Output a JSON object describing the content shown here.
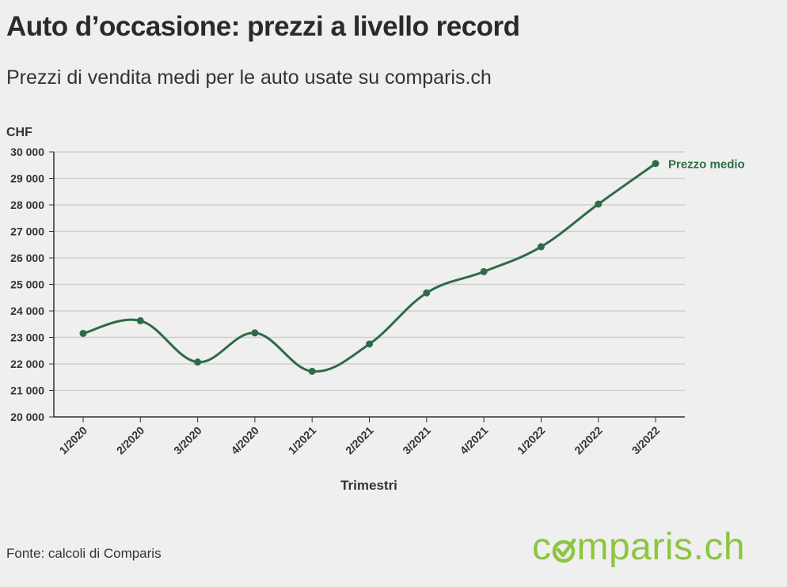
{
  "header": {
    "title": "Auto d’occasione: prezzi a livello record",
    "subtitle": "Prezzi di vendita medi per le auto usate su comparis.ch"
  },
  "footer": {
    "source": "Fonte: calcoli di Comparis",
    "logo_text": "comparis.ch"
  },
  "colors": {
    "line": "#2e6b47",
    "grid": "#cfcfcf",
    "axis": "#333333",
    "logo": "#8cc63f"
  },
  "chart_data": {
    "type": "line",
    "title": "",
    "ylabel": "CHF",
    "xlabel": "Trimestri",
    "ylim": [
      20000,
      30000
    ],
    "yticks": [
      20000,
      21000,
      22000,
      23000,
      24000,
      25000,
      26000,
      27000,
      28000,
      29000,
      30000
    ],
    "ytick_labels": [
      "20 000",
      "21 000",
      "22 000",
      "23 000",
      "24 000",
      "25 000",
      "26 000",
      "27 000",
      "28 000",
      "29 000",
      "30 000"
    ],
    "categories": [
      "1/2020",
      "2/2020",
      "3/2020",
      "4/2020",
      "1/2021",
      "2/2021",
      "3/2021",
      "4/2021",
      "1/2022",
      "2/2022",
      "3/2022"
    ],
    "grid": true,
    "series": [
      {
        "name": "Prezzo medio",
        "values": [
          23150,
          23630,
          22070,
          23170,
          21720,
          22750,
          24680,
          25480,
          26420,
          28030,
          29560
        ]
      }
    ]
  }
}
